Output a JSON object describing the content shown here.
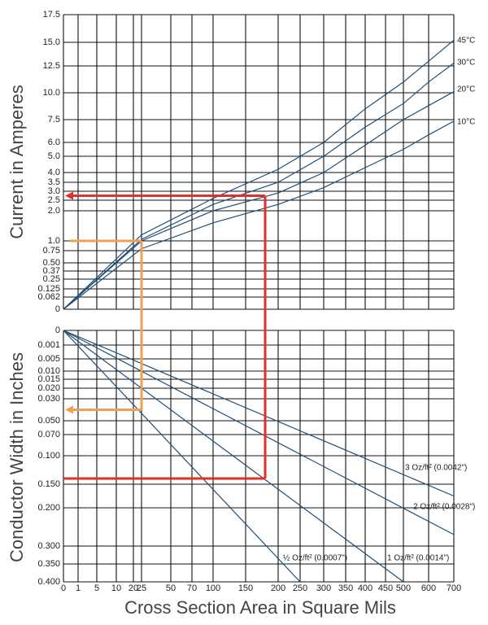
{
  "chart_data": [
    {
      "type": "line",
      "ylabel": "Current in Amperes",
      "xlim": [
        0,
        700
      ],
      "ylim": [
        0,
        17.5
      ],
      "grid": true,
      "yticks": [
        0,
        0.062,
        0.125,
        0.25,
        0.37,
        {
          "value": 0.5,
          "label": "0.50"
        },
        0.75,
        {
          "value": 1,
          "label": "1.0"
        },
        {
          "value": 2,
          "label": "2.0"
        },
        2.5,
        {
          "value": 3,
          "label": "3.0"
        },
        3.5,
        {
          "value": 4,
          "label": "4.0"
        },
        {
          "value": 5,
          "label": "5.0"
        },
        {
          "value": 6,
          "label": "6.0"
        },
        7.5,
        {
          "value": 10,
          "label": "10.0"
        },
        12.5,
        {
          "value": 15,
          "label": "15.0"
        },
        17.5
      ],
      "series": [
        {
          "name": "45°C",
          "color": "#1f4e79",
          "x": [
            0,
            25,
            100,
            200,
            300,
            400,
            500,
            600,
            700
          ],
          "values": [
            0,
            1.2,
            2.6,
            4.2,
            6.0,
            8.5,
            11.0,
            13.0,
            15.2
          ]
        },
        {
          "name": "30°C",
          "color": "#1f4e79",
          "x": [
            0,
            25,
            100,
            200,
            300,
            400,
            500,
            600,
            700
          ],
          "values": [
            0,
            1.05,
            2.3,
            3.5,
            5.0,
            7.0,
            9.0,
            11.0,
            12.8
          ]
        },
        {
          "name": "20°C",
          "color": "#1f4e79",
          "x": [
            0,
            25,
            100,
            200,
            300,
            400,
            500,
            600,
            700
          ],
          "values": [
            0,
            1.0,
            2.0,
            2.9,
            4.0,
            5.8,
            7.5,
            8.8,
            10.1
          ]
        },
        {
          "name": "10°C",
          "color": "#1f4e79",
          "x": [
            0,
            25,
            100,
            200,
            300,
            400,
            500,
            600,
            700
          ],
          "values": [
            0,
            0.8,
            1.6,
            2.3,
            3.2,
            4.3,
            5.5,
            6.5,
            7.4
          ]
        }
      ]
    },
    {
      "type": "line",
      "ylabel": "Conductor Width in Inches",
      "xlabel": "Cross Section Area in Square Mils",
      "xlim": [
        0,
        700
      ],
      "ylim": [
        0,
        0.4
      ],
      "y_reversed": true,
      "grid": true,
      "xticks": [
        0,
        1,
        5,
        10,
        20,
        25,
        50,
        70,
        100,
        150,
        200,
        250,
        300,
        350,
        400,
        450,
        500,
        600,
        700
      ],
      "yticks": [
        0,
        0.001,
        0.005,
        {
          "value": 0.01,
          "label": "0.010"
        },
        0.015,
        {
          "value": 0.02,
          "label": "0.020"
        },
        {
          "value": 0.03,
          "label": "0.030"
        },
        {
          "value": 0.05,
          "label": "0.050"
        },
        {
          "value": 0.07,
          "label": "0.070"
        },
        {
          "value": 0.1,
          "label": "0.100"
        },
        {
          "value": 0.15,
          "label": "0.150"
        },
        {
          "value": 0.2,
          "label": "0.200"
        },
        {
          "value": 0.3,
          "label": "0.300"
        },
        {
          "value": 0.35,
          "label": "0.350"
        },
        {
          "value": 0.4,
          "label": "0.400"
        }
      ],
      "series": [
        {
          "name": "3 Oz/ft² (0.0042\")",
          "color": "#1f4e79",
          "x": [
            0,
            700
          ],
          "values": [
            0,
            0.175
          ]
        },
        {
          "name": "2 Oz/ft² (0.0028\")",
          "color": "#1f4e79",
          "x": [
            0,
            700
          ],
          "values": [
            0,
            0.27
          ]
        },
        {
          "name": "1 Oz/ft² (0.0014\")",
          "color": "#1f4e79",
          "x": [
            0,
            500
          ],
          "values": [
            0,
            0.4
          ]
        },
        {
          "name": "½ Oz/ft² (0.0007\")",
          "color": "#1f4e79",
          "x": [
            0,
            250
          ],
          "values": [
            0,
            0.4
          ]
        }
      ]
    }
  ],
  "guides": [
    {
      "color": "#e0302a",
      "x": 180,
      "current": 2.75,
      "width": 0.14
    },
    {
      "color": "#f0a050",
      "x": 25,
      "current": 1,
      "width": 0.04
    }
  ]
}
